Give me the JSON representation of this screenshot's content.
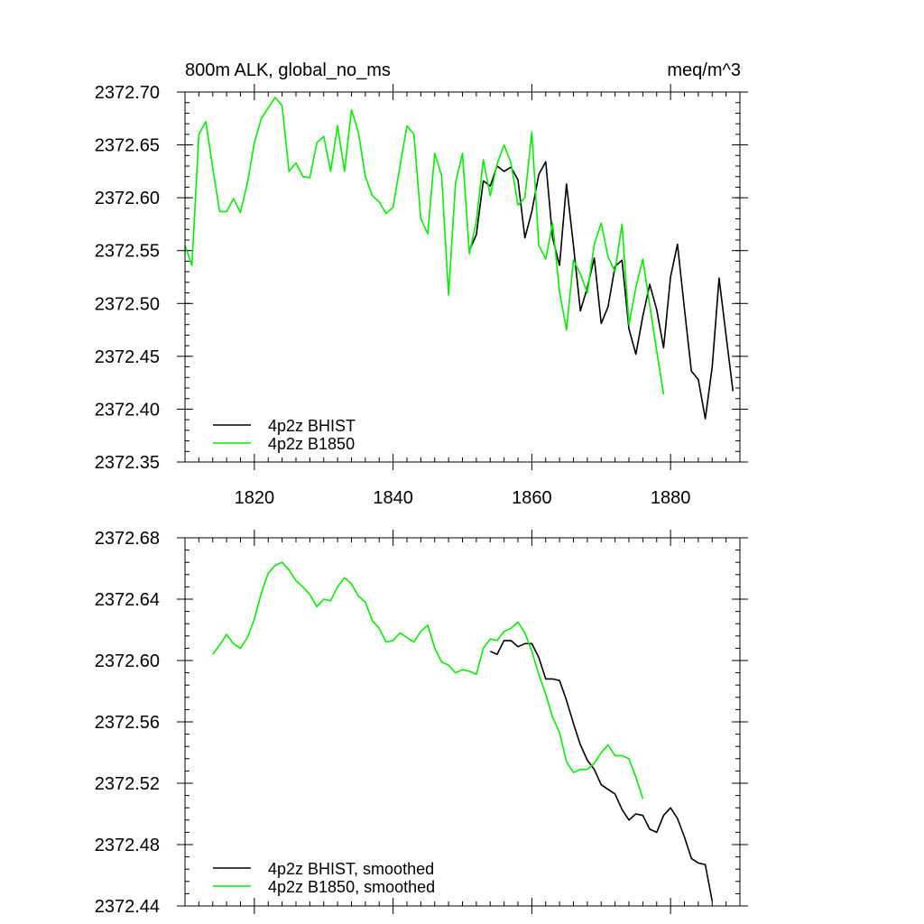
{
  "chart_data": [
    {
      "type": "line",
      "title_left": "800m ALK, global_no_ms",
      "title_right": "meq/m^3",
      "xlim": [
        1810,
        1890
      ],
      "ylim": [
        2372.35,
        2372.7
      ],
      "yticks": [
        "2372.35",
        "2372.40",
        "2372.45",
        "2372.50",
        "2372.55",
        "2372.60",
        "2372.65",
        "2372.70"
      ],
      "xticks": [
        "1820",
        "1840",
        "1860",
        "1880"
      ],
      "legend_position": "bottom-left",
      "series": [
        {
          "name": "4p2z BHIST",
          "color": "#000000",
          "x": [
            1851,
            1852,
            1853,
            1854,
            1855,
            1856,
            1857,
            1858,
            1859,
            1860,
            1861,
            1862,
            1863,
            1864,
            1865,
            1866,
            1867,
            1868,
            1869,
            1870,
            1871,
            1872,
            1873,
            1874,
            1875,
            1876,
            1877,
            1878,
            1879,
            1880,
            1881,
            1882,
            1883,
            1884,
            1885,
            1886,
            1887,
            1888,
            1889
          ],
          "y": [
            2372.55,
            2372.565,
            2372.616,
            2372.611,
            2372.63,
            2372.625,
            2372.629,
            2372.617,
            2372.562,
            2372.587,
            2372.622,
            2372.634,
            2372.562,
            2372.536,
            2372.613,
            2372.555,
            2372.493,
            2372.515,
            2372.543,
            2372.481,
            2372.497,
            2372.535,
            2372.541,
            2372.476,
            2372.452,
            2372.488,
            2372.518,
            2372.494,
            2372.458,
            2372.525,
            2372.556,
            2372.495,
            2372.436,
            2372.428,
            2372.391,
            2372.44,
            2372.524,
            2372.47,
            2372.417
          ]
        },
        {
          "name": "4p2z B1850",
          "color": "#00ee00",
          "x": [
            1810,
            1811,
            1812,
            1813,
            1814,
            1815,
            1816,
            1817,
            1818,
            1819,
            1820,
            1821,
            1822,
            1823,
            1824,
            1825,
            1826,
            1827,
            1828,
            1829,
            1830,
            1831,
            1832,
            1833,
            1834,
            1835,
            1836,
            1837,
            1838,
            1839,
            1840,
            1841,
            1842,
            1843,
            1844,
            1845,
            1846,
            1847,
            1848,
            1849,
            1850,
            1851,
            1852,
            1853,
            1854,
            1855,
            1856,
            1857,
            1858,
            1859,
            1860,
            1861,
            1862,
            1863,
            1864,
            1865,
            1866,
            1867,
            1868,
            1869,
            1870,
            1871,
            1872,
            1873,
            1874,
            1875,
            1876,
            1877,
            1878,
            1879
          ],
          "y": [
            2372.555,
            2372.536,
            2372.66,
            2372.672,
            2372.628,
            2372.587,
            2372.587,
            2372.599,
            2372.586,
            2372.614,
            2372.652,
            2372.675,
            2372.685,
            2372.695,
            2372.687,
            2372.625,
            2372.633,
            2372.62,
            2372.619,
            2372.652,
            2372.658,
            2372.625,
            2372.668,
            2372.625,
            2372.683,
            2372.662,
            2372.62,
            2372.602,
            2372.596,
            2372.585,
            2372.591,
            2372.63,
            2372.668,
            2372.66,
            2372.58,
            2372.566,
            2372.642,
            2372.621,
            2372.508,
            2372.614,
            2372.642,
            2372.547,
            2372.578,
            2372.636,
            2372.602,
            2372.632,
            2372.65,
            2372.633,
            2372.593,
            2372.6,
            2372.662,
            2372.555,
            2372.542,
            2372.576,
            2372.511,
            2372.475,
            2372.541,
            2372.528,
            2372.51,
            2372.556,
            2372.576,
            2372.544,
            2372.53,
            2372.575,
            2372.48,
            2372.515,
            2372.542,
            2372.498,
            2372.455,
            2372.414
          ]
        }
      ]
    },
    {
      "type": "line",
      "xlim": [
        1810,
        1890
      ],
      "ylim": [
        2372.44,
        2372.68
      ],
      "yticks": [
        "2372.44",
        "2372.48",
        "2372.52",
        "2372.56",
        "2372.60",
        "2372.64",
        "2372.68"
      ],
      "legend_position": "bottom-left",
      "series": [
        {
          "name": "4p2z BHIST, smoothed",
          "color": "#000000",
          "x": [
            1854,
            1855,
            1856,
            1857,
            1858,
            1859,
            1860,
            1861,
            1862,
            1863,
            1864,
            1865,
            1866,
            1867,
            1868,
            1869,
            1870,
            1871,
            1872,
            1873,
            1874,
            1875,
            1876,
            1877,
            1878,
            1879,
            1880,
            1881,
            1882,
            1883,
            1884,
            1885,
            1886
          ],
          "y": [
            2372.606,
            2372.604,
            2372.613,
            2372.613,
            2372.609,
            2372.611,
            2372.611,
            2372.602,
            2372.588,
            2372.588,
            2372.587,
            2372.574,
            2372.559,
            2372.545,
            2372.535,
            2372.529,
            2372.519,
            2372.516,
            2372.513,
            2372.503,
            2372.496,
            2372.5,
            2372.499,
            2372.49,
            2372.488,
            2372.499,
            2372.504,
            2372.497,
            2372.485,
            2372.471,
            2372.468,
            2372.467,
            2372.443
          ]
        },
        {
          "name": "4p2z B1850, smoothed",
          "color": "#00ee00",
          "x": [
            1814,
            1815,
            1816,
            1817,
            1818,
            1819,
            1820,
            1821,
            1822,
            1823,
            1824,
            1825,
            1826,
            1827,
            1828,
            1829,
            1830,
            1831,
            1832,
            1833,
            1834,
            1835,
            1836,
            1837,
            1838,
            1839,
            1840,
            1841,
            1842,
            1843,
            1844,
            1845,
            1846,
            1847,
            1848,
            1849,
            1850,
            1851,
            1852,
            1853,
            1854,
            1855,
            1856,
            1857,
            1858,
            1859,
            1860,
            1861,
            1862,
            1863,
            1864,
            1865,
            1866,
            1867,
            1868,
            1869,
            1870,
            1871,
            1872,
            1873,
            1874,
            1875,
            1876
          ],
          "y": [
            2372.604,
            2372.61,
            2372.617,
            2372.611,
            2372.608,
            2372.615,
            2372.627,
            2372.644,
            2372.657,
            2372.662,
            2372.664,
            2372.659,
            2372.652,
            2372.648,
            2372.643,
            2372.635,
            2372.64,
            2372.639,
            2372.648,
            2372.654,
            2372.65,
            2372.642,
            2372.638,
            2372.626,
            2372.621,
            2372.612,
            2372.613,
            2372.618,
            2372.615,
            2372.612,
            2372.619,
            2372.623,
            2372.608,
            2372.599,
            2372.597,
            2372.592,
            2372.594,
            2372.593,
            2372.591,
            2372.608,
            2372.614,
            2372.613,
            2372.619,
            2372.621,
            2372.625,
            2372.618,
            2372.606,
            2372.591,
            2372.578,
            2372.563,
            2372.553,
            2372.534,
            2372.527,
            2372.529,
            2372.529,
            2372.533,
            2372.54,
            2372.545,
            2372.538,
            2372.538,
            2372.536,
            2372.524,
            2372.51
          ]
        }
      ]
    }
  ]
}
